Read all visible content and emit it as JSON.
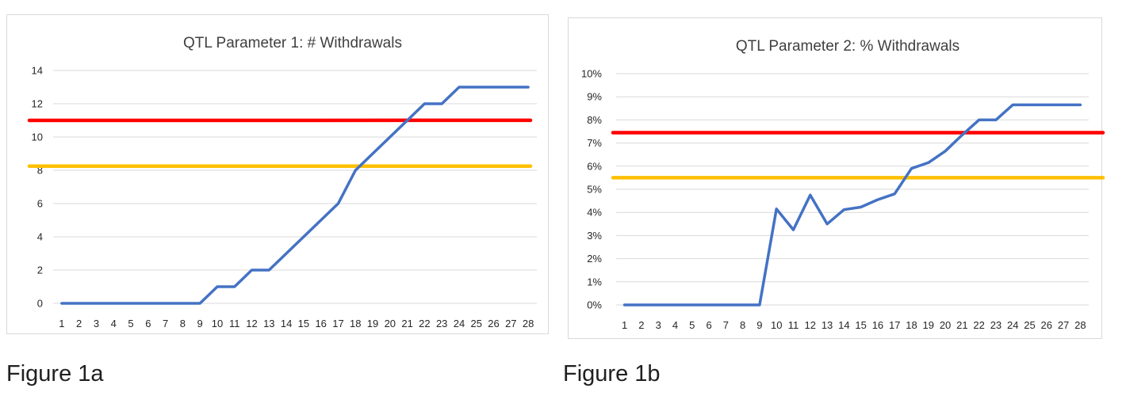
{
  "captions": {
    "figure_a": "Figure 1a",
    "figure_b": "Figure 1b"
  },
  "colors": {
    "series": "#4472C4",
    "red_line": "#FF0000",
    "yellow_line": "#FFC000",
    "grid": "#D9D9D9"
  },
  "chart_data": [
    {
      "type": "line",
      "title": "QTL Parameter 1: # Withdrawals",
      "categories": [
        "1",
        "2",
        "3",
        "4",
        "5",
        "6",
        "7",
        "8",
        "9",
        "10",
        "11",
        "12",
        "13",
        "14",
        "15",
        "16",
        "17",
        "18",
        "19",
        "20",
        "21",
        "22",
        "23",
        "24",
        "25",
        "26",
        "27",
        "28"
      ],
      "ylim": [
        0,
        14
      ],
      "yticks": [
        0,
        2,
        4,
        6,
        8,
        10,
        12,
        14
      ],
      "ytick_labels": [
        "0",
        "2",
        "4",
        "6",
        "8",
        "10",
        "12",
        "14"
      ],
      "grid": true,
      "series": [
        {
          "color": "#4472C4",
          "values": [
            0,
            0,
            0,
            0,
            0,
            0,
            0,
            0,
            0,
            1,
            1,
            2,
            2,
            3,
            4,
            5,
            6,
            8,
            9,
            10,
            11,
            12,
            12,
            13,
            13,
            13,
            13,
            13
          ]
        },
        {
          "color": "#FF0000",
          "values": [
            11,
            11,
            11,
            11,
            11,
            11,
            11,
            11,
            11,
            11,
            11,
            11,
            11,
            11,
            11,
            11,
            11,
            11,
            11,
            11,
            11,
            11,
            11,
            11,
            11,
            11,
            11,
            11
          ]
        },
        {
          "color": "#FFC000",
          "values": [
            8.25,
            8.25,
            8.25,
            8.25,
            8.25,
            8.25,
            8.25,
            8.25,
            8.25,
            8.25,
            8.25,
            8.25,
            8.25,
            8.25,
            8.25,
            8.25,
            8.25,
            8.25,
            8.25,
            8.25,
            8.25,
            8.25,
            8.25,
            8.25,
            8.25,
            8.25,
            8.25,
            8.25
          ]
        }
      ]
    },
    {
      "type": "line",
      "title": "QTL Parameter 2: % Withdrawals",
      "categories": [
        "1",
        "2",
        "3",
        "4",
        "5",
        "6",
        "7",
        "8",
        "9",
        "10",
        "11",
        "12",
        "13",
        "14",
        "15",
        "16",
        "17",
        "18",
        "19",
        "20",
        "21",
        "22",
        "23",
        "24",
        "25",
        "26",
        "27",
        "28"
      ],
      "ylim": [
        0,
        10
      ],
      "yticks": [
        0,
        1,
        2,
        3,
        4,
        5,
        6,
        7,
        8,
        9,
        10
      ],
      "ytick_labels": [
        "0%",
        "1%",
        "2%",
        "3%",
        "4%",
        "5%",
        "6%",
        "7%",
        "8%",
        "9%",
        "10%"
      ],
      "grid": true,
      "series": [
        {
          "color": "#4472C4",
          "values": [
            0,
            0,
            0,
            0,
            0,
            0,
            0,
            0,
            0,
            4.15,
            3.25,
            4.75,
            3.5,
            4.12,
            4.23,
            4.55,
            4.8,
            5.9,
            6.15,
            6.65,
            7.35,
            8.0,
            8.0,
            8.65,
            8.65,
            8.65,
            8.65,
            8.65
          ]
        },
        {
          "color": "#FF0000",
          "values": [
            7.45,
            7.45,
            7.45,
            7.45,
            7.45,
            7.45,
            7.45,
            7.45,
            7.45,
            7.45,
            7.45,
            7.45,
            7.45,
            7.45,
            7.45,
            7.45,
            7.45,
            7.45,
            7.45,
            7.45,
            7.45,
            7.45,
            7.45,
            7.45,
            7.45,
            7.45,
            7.45,
            7.45
          ]
        },
        {
          "color": "#FFC000",
          "values": [
            5.5,
            5.5,
            5.5,
            5.5,
            5.5,
            5.5,
            5.5,
            5.5,
            5.5,
            5.5,
            5.5,
            5.5,
            5.5,
            5.5,
            5.5,
            5.5,
            5.5,
            5.5,
            5.5,
            5.5,
            5.5,
            5.5,
            5.5,
            5.5,
            5.5,
            5.5,
            5.5,
            5.5
          ]
        }
      ]
    }
  ]
}
